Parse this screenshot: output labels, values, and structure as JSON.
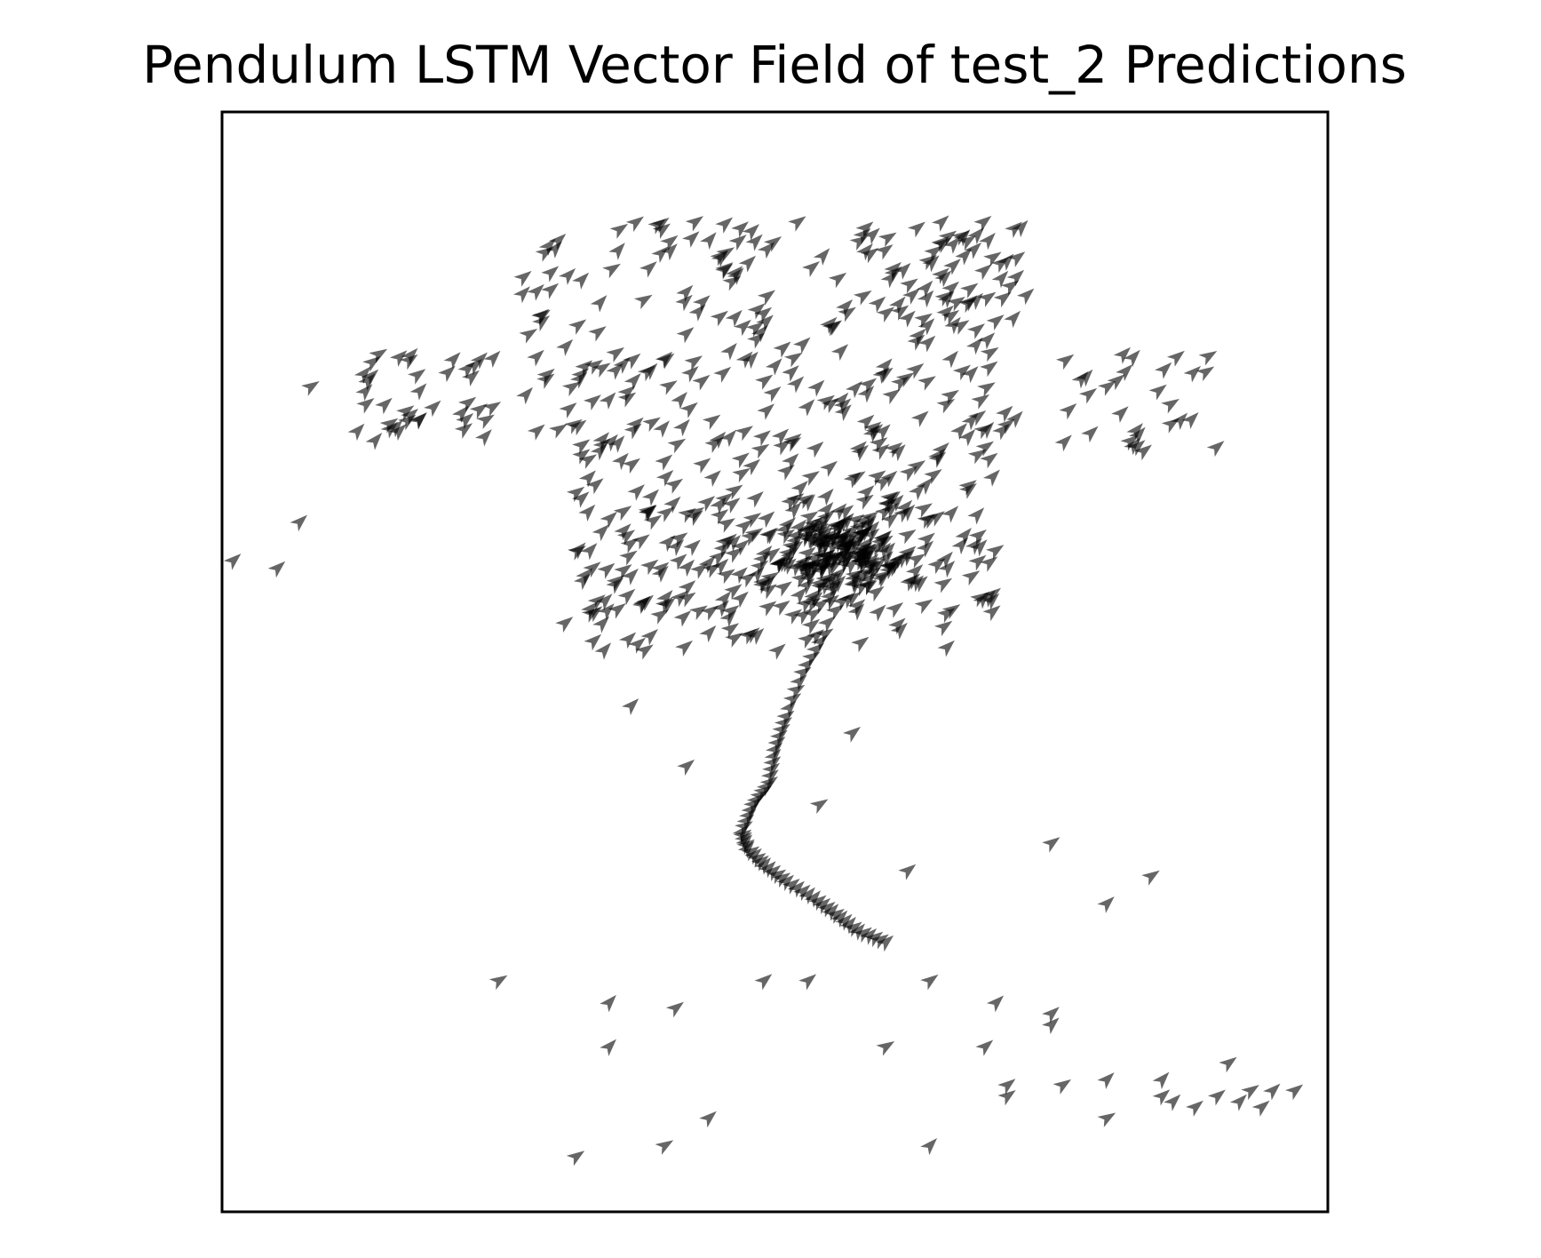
{
  "chart_data": {
    "type": "scatter",
    "subtype": "quiver",
    "title": "Pendulum LSTM Vector Field of test_2  Predictions",
    "xlabel": "",
    "ylabel": "",
    "axis_ticks": "none",
    "grid": false,
    "legend": "none",
    "xlim": [
      0,
      1
    ],
    "ylim": [
      0,
      1
    ],
    "colors": {
      "arrow": "#000000",
      "arrow_alpha": 0.6,
      "frame": "#000000",
      "background": "#ffffff"
    },
    "arrow_direction_deg": 40,
    "regions": [
      {
        "name": "dense-core",
        "cx": 0.56,
        "cy": 0.6,
        "sx": 0.045,
        "sy": 0.03,
        "count": 180
      },
      {
        "name": "upper-cloud",
        "x0": 0.27,
        "x1": 0.72,
        "y0": 0.7,
        "y1": 0.9,
        "count": 230
      },
      {
        "name": "middle-cloud",
        "x0": 0.32,
        "x1": 0.7,
        "y0": 0.54,
        "y1": 0.7,
        "count": 230
      },
      {
        "name": "left-cluster",
        "x0": 0.11,
        "x1": 0.25,
        "y0": 0.7,
        "y1": 0.78,
        "count": 40
      },
      {
        "name": "right-cluster",
        "x0": 0.76,
        "x1": 0.9,
        "y0": 0.69,
        "y1": 0.78,
        "count": 30
      },
      {
        "name": "upper-right-ring",
        "x0": 0.6,
        "x1": 0.73,
        "y0": 0.79,
        "y1": 0.9,
        "count": 25
      },
      {
        "name": "lower-fringe",
        "x0": 0.32,
        "x1": 0.66,
        "y0": 0.51,
        "y1": 0.56,
        "count": 40
      }
    ],
    "trail": [
      [
        0.545,
        0.525
      ],
      [
        0.525,
        0.49
      ],
      [
        0.51,
        0.45
      ],
      [
        0.5,
        0.42
      ],
      [
        0.495,
        0.39
      ],
      [
        0.48,
        0.37
      ],
      [
        0.47,
        0.345
      ],
      [
        0.475,
        0.33
      ],
      [
        0.49,
        0.315
      ],
      [
        0.51,
        0.3
      ],
      [
        0.535,
        0.285
      ],
      [
        0.555,
        0.27
      ],
      [
        0.575,
        0.255
      ],
      [
        0.6,
        0.245
      ]
    ],
    "isolated_points": [
      [
        0.08,
        0.75
      ],
      [
        0.07,
        0.627
      ],
      [
        0.01,
        0.592
      ],
      [
        0.05,
        0.585
      ],
      [
        0.31,
        0.535
      ],
      [
        0.37,
        0.46
      ],
      [
        0.42,
        0.405
      ],
      [
        0.57,
        0.435
      ],
      [
        0.54,
        0.37
      ],
      [
        0.62,
        0.31
      ],
      [
        0.75,
        0.335
      ],
      [
        0.84,
        0.305
      ],
      [
        0.8,
        0.28
      ],
      [
        0.25,
        0.21
      ],
      [
        0.35,
        0.19
      ],
      [
        0.41,
        0.185
      ],
      [
        0.49,
        0.21
      ],
      [
        0.53,
        0.21
      ],
      [
        0.64,
        0.21
      ],
      [
        0.7,
        0.19
      ],
      [
        0.75,
        0.18
      ],
      [
        0.75,
        0.17
      ],
      [
        0.35,
        0.15
      ],
      [
        0.6,
        0.15
      ],
      [
        0.69,
        0.15
      ],
      [
        0.71,
        0.115
      ],
      [
        0.76,
        0.115
      ],
      [
        0.8,
        0.12
      ],
      [
        0.85,
        0.12
      ],
      [
        0.91,
        0.135
      ],
      [
        0.71,
        0.105
      ],
      [
        0.85,
        0.105
      ],
      [
        0.9,
        0.105
      ],
      [
        0.93,
        0.11
      ],
      [
        0.95,
        0.11
      ],
      [
        0.97,
        0.11
      ],
      [
        0.86,
        0.1
      ],
      [
        0.92,
        0.1
      ],
      [
        0.8,
        0.085
      ],
      [
        0.44,
        0.085
      ],
      [
        0.4,
        0.06
      ],
      [
        0.64,
        0.06
      ],
      [
        0.32,
        0.05
      ],
      [
        0.88,
        0.095
      ],
      [
        0.94,
        0.095
      ]
    ]
  }
}
